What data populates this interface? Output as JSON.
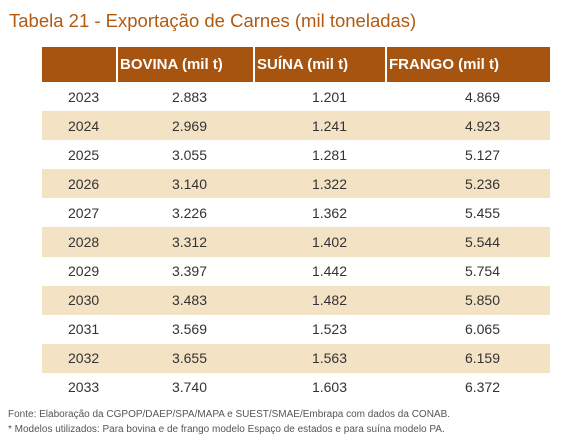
{
  "title": "Tabela 21 - Exportação de Carnes (mil toneladas)",
  "table": {
    "headers": [
      "",
      "BOVINA (mil t)",
      "SUÍNA (mil t)",
      "FRANGO (mil t)"
    ],
    "rows": [
      [
        "2023",
        "2.883",
        "1.201",
        "4.869"
      ],
      [
        "2024",
        "2.969",
        "1.241",
        "4.923"
      ],
      [
        "2025",
        "3.055",
        "1.281",
        "5.127"
      ],
      [
        "2026",
        "3.140",
        "1.322",
        "5.236"
      ],
      [
        "2027",
        "3.226",
        "1.362",
        "5.455"
      ],
      [
        "2028",
        "3.312",
        "1.402",
        "5.544"
      ],
      [
        "2029",
        "3.397",
        "1.442",
        "5.754"
      ],
      [
        "2030",
        "3.483",
        "1.482",
        "5.850"
      ],
      [
        "2031",
        "3.569",
        "1.523",
        "6.065"
      ],
      [
        "2032",
        "3.655",
        "1.563",
        "6.159"
      ],
      [
        "2033",
        "3.740",
        "1.603",
        "6.372"
      ]
    ]
  },
  "colors": {
    "title": "#b15a10",
    "header_bg": "#a6540f",
    "header_text": "#ffffff",
    "stripe": "#f4e2c4"
  },
  "footnotes": {
    "source": "Fonte: Elaboração da CGPOP/DAEP/SPA/MAPA e SUEST/SMAE/Embrapa com dados da CONAB.",
    "models": "* Modelos utilizados: Para bovina e de frango modelo Espaço de estados e para suína modelo PA."
  }
}
